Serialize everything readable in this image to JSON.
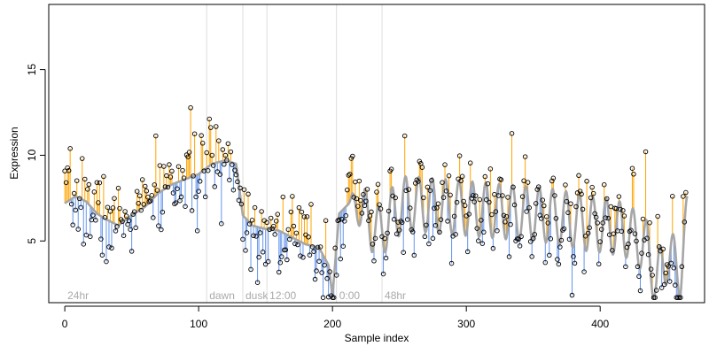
{
  "chart_data": {
    "type": "scatter",
    "title": "",
    "xlabel": "Sample index",
    "ylabel": "Expression",
    "xlim": [
      -12,
      478
    ],
    "ylim": [
      1.4,
      18.8
    ],
    "x_ticks": [
      0,
      100,
      200,
      300,
      400
    ],
    "y_ticks": [
      5,
      10,
      15
    ],
    "grid": false,
    "legend": "none",
    "colors": {
      "fit_line": "#a6a6a6",
      "above_fit": "#ffa500",
      "below_fit": "#6495ed",
      "points": "#000000",
      "event_lines": "#dddddd",
      "event_labels": "#aaaaaa"
    },
    "events": [
      {
        "x": 0,
        "label": "24hr"
      },
      {
        "x": 106,
        "label": "dawn"
      },
      {
        "x": 133,
        "label": "dusk"
      },
      {
        "x": 151,
        "label": "12:00"
      },
      {
        "x": 203,
        "label": "0:00"
      },
      {
        "x": 237,
        "label": "48hr"
      }
    ],
    "fit_anchors": {
      "x": [
        0,
        8,
        16,
        24,
        30,
        40,
        50,
        60,
        70,
        80,
        90,
        100,
        110,
        120,
        128,
        133,
        140,
        150,
        160,
        170,
        180,
        190,
        197,
        200,
        205,
        215,
        225,
        235,
        245,
        255,
        270,
        285,
        300,
        315,
        330,
        345,
        360,
        375,
        390,
        405,
        420,
        435,
        442,
        450,
        460,
        465
      ],
      "y": [
        7.2,
        7.6,
        7.3,
        6.6,
        6.3,
        5.9,
        6.5,
        7.0,
        7.8,
        8.3,
        8.6,
        8.9,
        9.5,
        9.7,
        9.5,
        6.5,
        5.9,
        5.7,
        5.6,
        5.2,
        4.8,
        4.6,
        3.6,
        1.8,
        6.6,
        7.4,
        6.4,
        5.4,
        6.6,
        7.2,
        7.1,
        7.0,
        6.9,
        6.8,
        6.7,
        6.6,
        6.5,
        6.3,
        6.0,
        5.9,
        5.6,
        4.6,
        2.6,
        4.2,
        3.3,
        6.1
      ]
    },
    "osc_start": 212,
    "osc_period": 10,
    "osc_amp": 1.6,
    "n_points": 465,
    "residual_sd": 1.3,
    "seed": 7
  }
}
